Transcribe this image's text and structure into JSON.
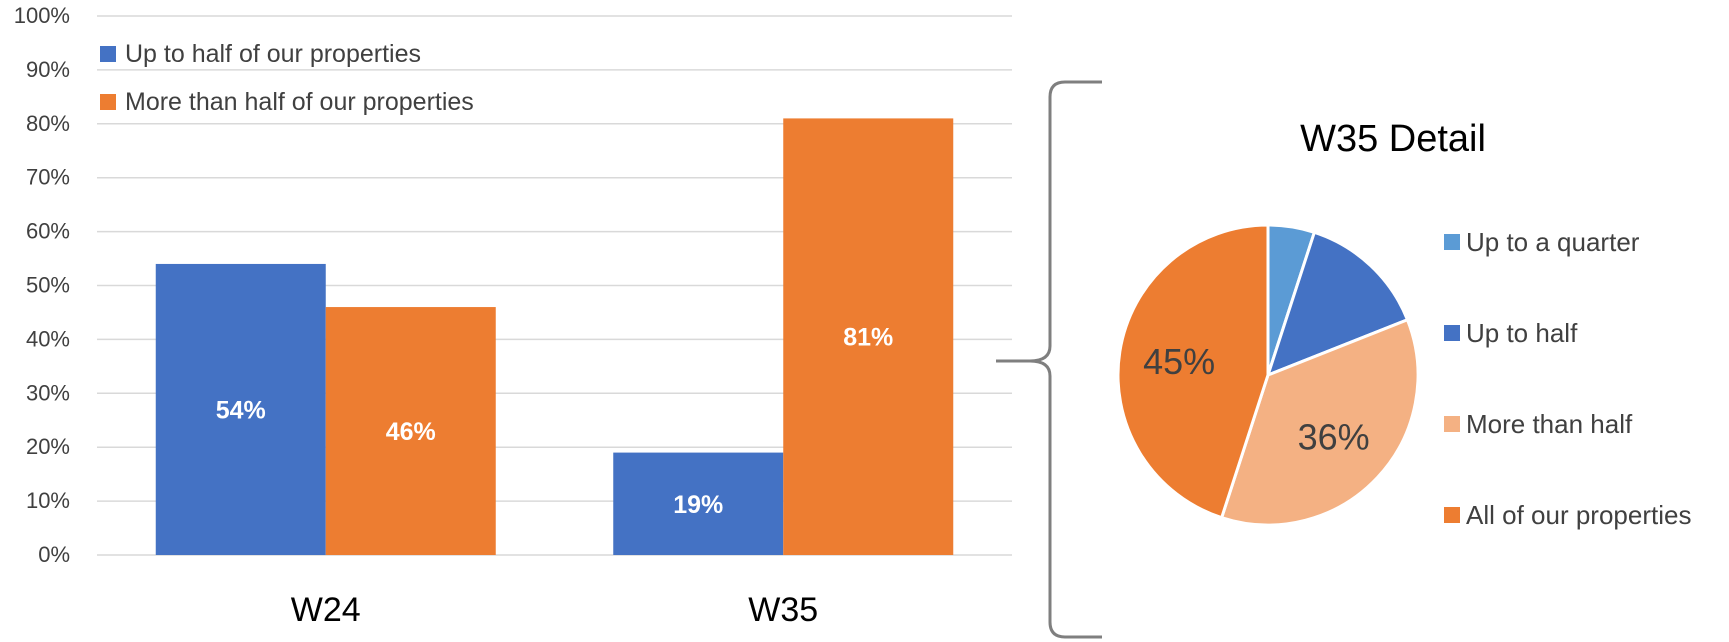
{
  "chart_data": [
    {
      "type": "bar",
      "title": "",
      "xlabel": "",
      "ylabel": "",
      "categories": [
        "W24",
        "W35"
      ],
      "ylim": [
        0,
        100
      ],
      "y_ticks": [
        "0%",
        "10%",
        "20%",
        "30%",
        "40%",
        "50%",
        "60%",
        "70%",
        "80%",
        "90%",
        "100%"
      ],
      "grid": true,
      "legend_position": "top-left",
      "series": [
        {
          "name": "Up to half of our properties",
          "color": "#4472C4",
          "values": [
            54,
            19
          ],
          "labels": [
            "54%",
            "19%"
          ]
        },
        {
          "name": "More than half of our properties",
          "color": "#ED7D31",
          "values": [
            46,
            81
          ],
          "labels": [
            "46%",
            "81%"
          ]
        }
      ]
    },
    {
      "type": "pie",
      "title": "W35 Detail",
      "legend_position": "right",
      "slices": [
        {
          "name": "Up to a quarter",
          "value": 5,
          "color": "#5B9BD5",
          "label": ""
        },
        {
          "name": "Up to half",
          "value": 14,
          "color": "#4472C4",
          "label": ""
        },
        {
          "name": "More than half",
          "value": 36,
          "color": "#F4B183",
          "label": "36%"
        },
        {
          "name": "All of our properties",
          "value": 45,
          "color": "#ED7D31",
          "label": "45%"
        }
      ]
    }
  ]
}
